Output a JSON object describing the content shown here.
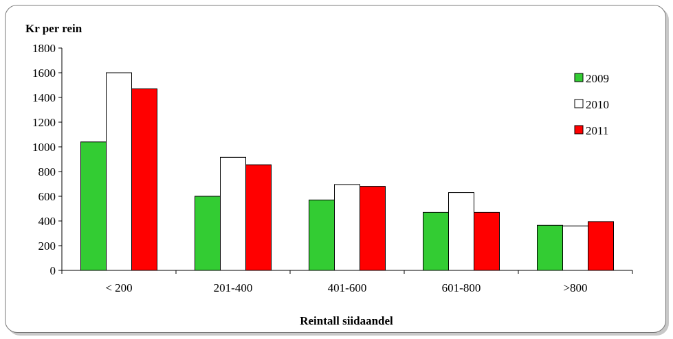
{
  "chart_data": {
    "type": "bar",
    "title": "",
    "ylabel": "Kr per rein",
    "xlabel": "Reintall siidaandel",
    "categories": [
      "< 200",
      "201-400",
      "401-600",
      "601-800",
      ">800"
    ],
    "ylim": [
      0,
      1800
    ],
    "yticks": [
      0,
      200,
      400,
      600,
      800,
      1000,
      1200,
      1400,
      1600,
      1800
    ],
    "yticks_labels": [
      "0",
      "200",
      "400",
      "600",
      "800",
      "1000",
      "1200",
      "1400",
      "1600",
      "1800"
    ],
    "grid": false,
    "legend_position": "right",
    "series": [
      {
        "name": "2009",
        "color": "#33cc33",
        "values": [
          1040,
          600,
          570,
          470,
          365
        ]
      },
      {
        "name": "2010",
        "color": "#ffffff",
        "values": [
          1600,
          915,
          695,
          630,
          360
        ]
      },
      {
        "name": "2011",
        "color": "#ff0000",
        "values": [
          1470,
          855,
          680,
          470,
          395
        ]
      }
    ]
  }
}
